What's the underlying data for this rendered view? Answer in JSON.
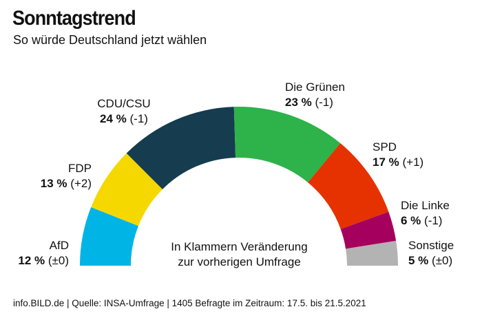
{
  "title": "Sonntagstrend",
  "subtitle": "So würde Deutschland jetzt wählen",
  "note_line1": "In Klammern Veränderung",
  "note_line2": "zur vorherigen Umfrage",
  "footer": "info.BILD.de | Quelle: INSA-Umfrage | 1405 Befragte im Zeitraum: 17.5. bis 21.5.2021",
  "chart_data": {
    "type": "pie",
    "variant": "semi-donut",
    "title": "Sonntagstrend",
    "unit": "%",
    "series": [
      {
        "name": "AfD",
        "value": 12,
        "value_label": "12 %",
        "change": "(±0)",
        "color": "#00b4e6"
      },
      {
        "name": "FDP",
        "value": 13,
        "value_label": "13 %",
        "change": "(+2)",
        "color": "#f5d800"
      },
      {
        "name": "CDU/CSU",
        "value": 24,
        "value_label": "24 %",
        "change": "(-1)",
        "color": "#153c4f"
      },
      {
        "name": "Die Grünen",
        "value": 23,
        "value_label": "23 %",
        "change": "(-1)",
        "color": "#2db34a"
      },
      {
        "name": "SPD",
        "value": 17,
        "value_label": "17 %",
        "change": "(+1)",
        "color": "#e63200"
      },
      {
        "name": "Die Linke",
        "value": 6,
        "value_label": "6 %",
        "change": "(-1)",
        "color": "#a5005e"
      },
      {
        "name": "Sonstige",
        "value": 5,
        "value_label": "5 %",
        "change": "(±0)",
        "color": "#b3b3b3"
      }
    ]
  }
}
